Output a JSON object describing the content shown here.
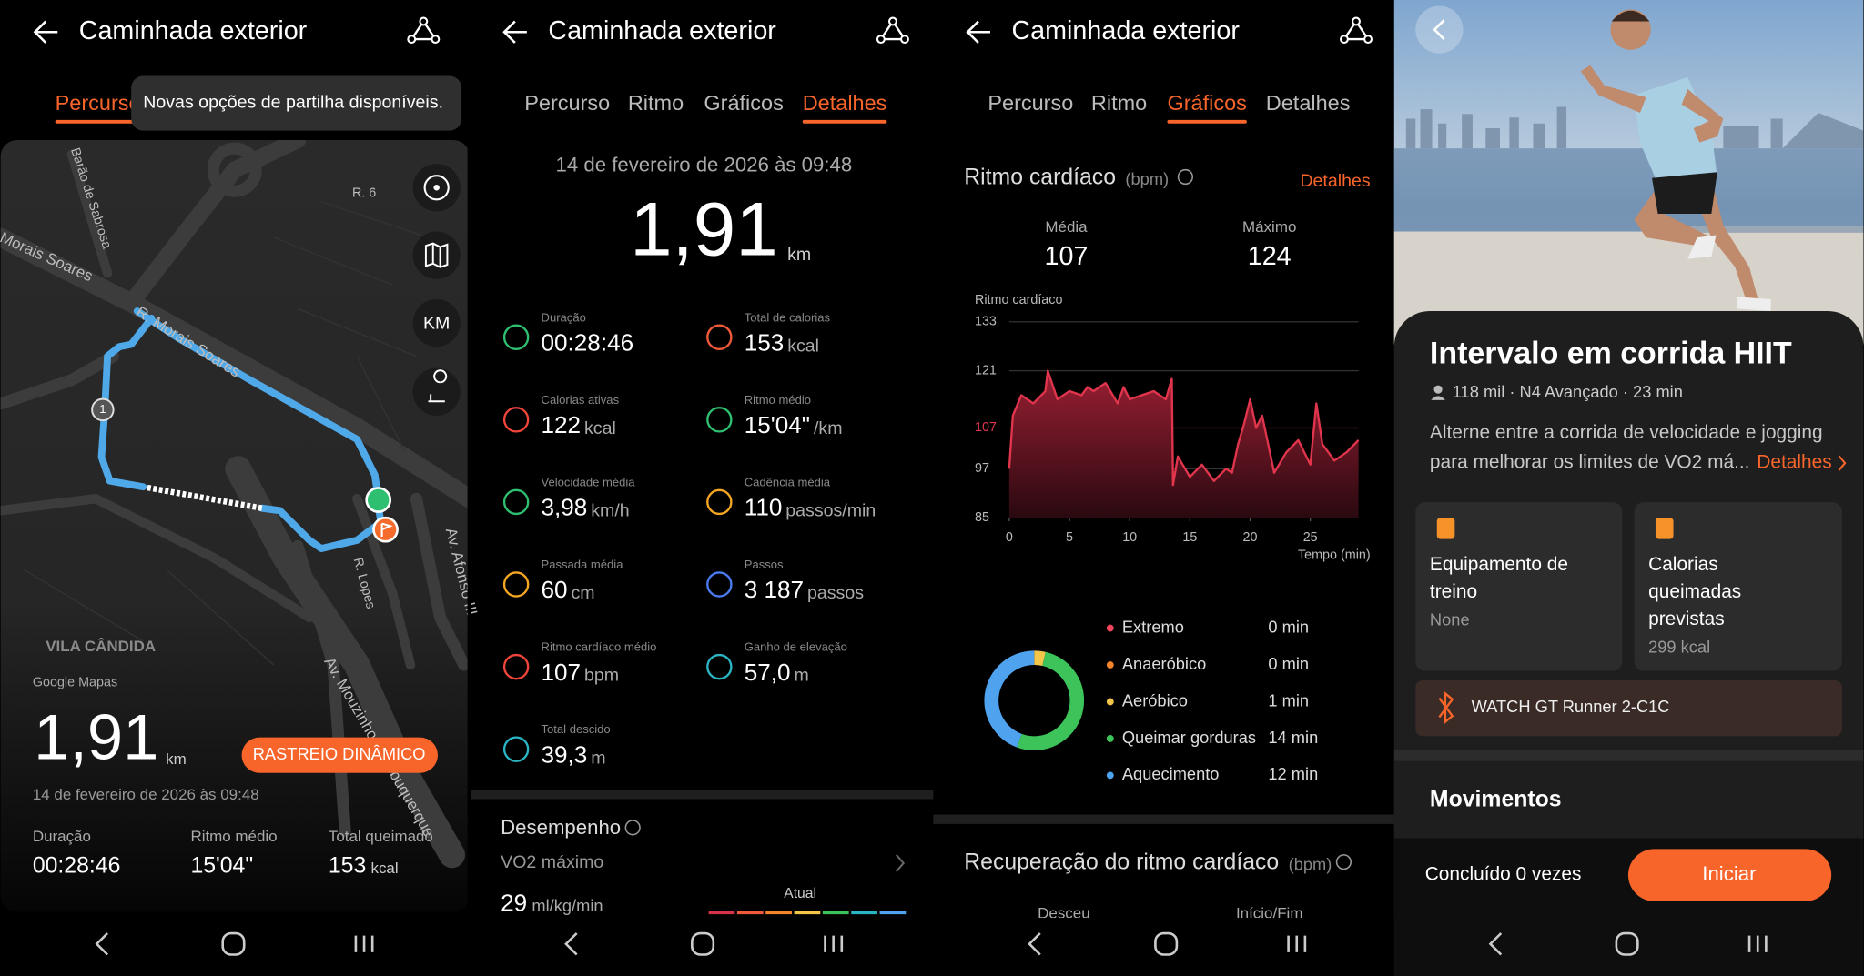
{
  "route_screen": {
    "title": "Caminhada exterior",
    "active_tab": "Percurso",
    "tooltip": "Novas opções de partilha disponíveis.",
    "map_labels": [
      "Barão de Sabrosa",
      "R. 6",
      "Morais Soares",
      "R. Morais Soares",
      "Av. Afonso III",
      "R. Lopes",
      "Av. Mouzinho de Albuquerque",
      "VILA CÂNDIDA"
    ],
    "map_button": "KM",
    "waypoint": "1",
    "map_credit": "Google Mapas",
    "distance": "1,91",
    "distance_unit": "km",
    "button": "RASTREIO DINÂMICO",
    "date": "14 de fevereiro de 2026 às 09:48",
    "stats": [
      {
        "label": "Duração",
        "value": "00:28:46"
      },
      {
        "label": "Ritmo médio",
        "value": "15'04\""
      },
      {
        "label": "Total queimado",
        "value": "153",
        "unit": "kcal"
      }
    ]
  },
  "details_screen": {
    "title": "Caminhada exterior",
    "tabs": [
      "Percurso",
      "Ritmo",
      "Gráficos",
      "Detalhes"
    ],
    "active_tab": 3,
    "date": "14 de fevereiro de 2026 às 09:48",
    "distance": "1,91",
    "distance_unit": "km",
    "metrics": [
      {
        "label": "Duração",
        "value": "00:28:46",
        "color": "#2fbf71"
      },
      {
        "label": "Total de calorias",
        "value": "153",
        "unit": "kcal",
        "color": "#f05a3a"
      },
      {
        "label": "Calorias ativas",
        "value": "122",
        "unit": "kcal",
        "color": "#f0453a"
      },
      {
        "label": "Ritmo médio",
        "value": "15'04\"",
        "unit": "/km",
        "color": "#2fbf71"
      },
      {
        "label": "Velocidade média",
        "value": "3,98",
        "unit": "km/h",
        "color": "#2fbf71"
      },
      {
        "label": "Cadência média",
        "value": "110",
        "unit": "passos/min",
        "color": "#f5a623"
      },
      {
        "label": "Passada média",
        "value": "60",
        "unit": "cm",
        "color": "#f5a623"
      },
      {
        "label": "Passos",
        "value": "3 187",
        "unit": "passos",
        "color": "#4a7bf0"
      },
      {
        "label": "Ritmo cardíaco médio",
        "value": "107",
        "unit": "bpm",
        "color": "#f0453a"
      },
      {
        "label": "Ganho de elevação",
        "value": "57,0",
        "unit": "m",
        "color": "#2bb5c4"
      },
      {
        "label": "Total descido",
        "value": "39,3",
        "unit": "m",
        "color": "#2bb5c4"
      }
    ],
    "performance": {
      "title": "Desempenho",
      "metric": "VO2 máximo",
      "value": "29",
      "unit": "ml/kg/min",
      "marker": "Atual"
    }
  },
  "charts_screen": {
    "title": "Caminhada exterior",
    "tabs": [
      "Percurso",
      "Ritmo",
      "Gráficos",
      "Detalhes"
    ],
    "active_tab": 2,
    "section_title": "Ritmo cardíaco",
    "section_unit": "(bpm)",
    "link": "Detalhes",
    "stats": [
      {
        "label": "Média",
        "value": "107"
      },
      {
        "label": "Máximo",
        "value": "124"
      }
    ],
    "heart_rate_chart": {
      "type": "line",
      "y_label": "Ritmo cardíaco",
      "x_label": "Tempo (min)",
      "x": [
        0,
        0.3,
        1,
        2,
        3,
        3.2,
        4,
        5,
        6,
        6.5,
        7,
        8,
        9,
        9.5,
        10,
        11,
        12,
        13,
        13.5,
        13.6,
        14,
        15,
        16,
        17,
        18,
        18.5,
        19,
        19.5,
        20,
        20.5,
        21,
        22,
        23,
        24,
        25,
        25.5,
        26,
        27,
        28,
        29
      ],
      "values": [
        97,
        110,
        115,
        113,
        116,
        121,
        114,
        116,
        115,
        117,
        116,
        118,
        113,
        117,
        114,
        115,
        116,
        114,
        119,
        93,
        100,
        95,
        98,
        94,
        97,
        96,
        103,
        108,
        114,
        107,
        110,
        96,
        101,
        104,
        98,
        113,
        103,
        99,
        101,
        104
      ],
      "color": "#e0354c",
      "xlim": [
        0,
        29
      ],
      "ylim": [
        85,
        133
      ],
      "xticks": [
        0,
        5,
        10,
        15,
        20,
        25
      ],
      "yticks": [
        85,
        97,
        107,
        121,
        133
      ],
      "grid": true
    },
    "zones": {
      "type": "donut",
      "categories": [
        "Extremo",
        "Anaeróbico",
        "Aeróbico",
        "Queimar gorduras",
        "Aquecimento"
      ],
      "values": [
        0,
        0,
        1,
        14,
        12
      ],
      "value_labels": [
        "0 min",
        "0 min",
        "1 min",
        "14 min",
        "12 min"
      ],
      "colors": [
        "#f0455a",
        "#f5842a",
        "#f3c64a",
        "#3cc35a",
        "#4fa3ee"
      ]
    },
    "recovery": {
      "title": "Recuperação do ritmo cardíaco",
      "unit": "(bpm)",
      "columns": [
        "Desceu",
        "Início/Fim"
      ]
    }
  },
  "workout_screen": {
    "title": "Intervalo em corrida HIIT",
    "meta": "118 mil · N4 Avançado · 23 min",
    "description": [
      "Alterne entre a corrida de velocidade e jogging",
      "para melhorar os limites de VO2 má..."
    ],
    "link": "Detalhes",
    "cards": [
      {
        "title": [
          "Equipamento de",
          "treino"
        ],
        "value": "None"
      },
      {
        "title": [
          "Calorias",
          "queimadas",
          "previstas"
        ],
        "value": "299 kcal"
      }
    ],
    "device": "WATCH GT Runner 2-C1C",
    "section": "Movimentos",
    "completed": "Concluído 0 vezes",
    "button": "Iniciar"
  }
}
